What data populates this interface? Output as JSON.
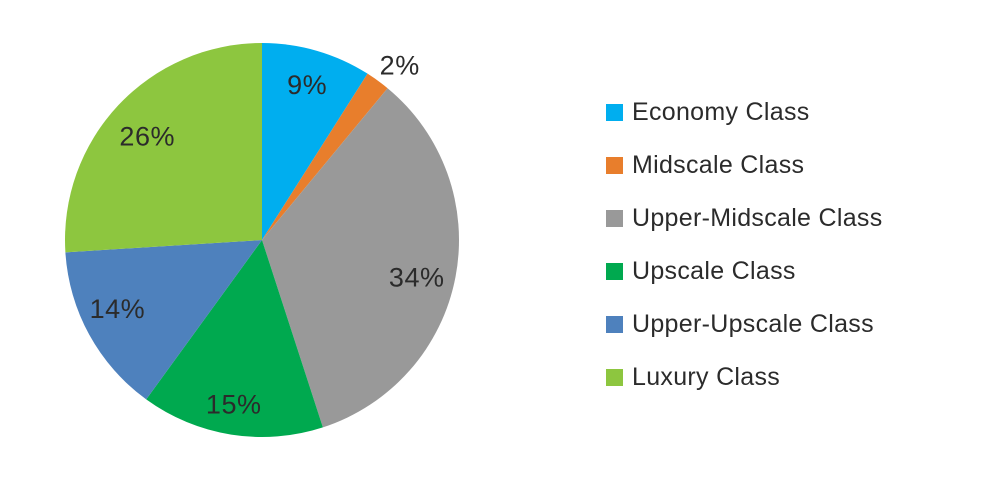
{
  "chart_data": {
    "type": "pie",
    "title": "",
    "categories": [
      "Economy Class",
      "Midscale Class",
      "Upper-Midscale Class",
      "Upscale Class",
      "Upper-Upscale Class",
      "Luxury Class"
    ],
    "values": [
      9,
      2,
      34,
      15,
      14,
      26
    ],
    "labels": [
      "9%",
      "2%",
      "34%",
      "15%",
      "14%",
      "26%"
    ],
    "colors": [
      "#00aeef",
      "#e87e2c",
      "#999999",
      "#00a94f",
      "#4e81bd",
      "#8dc63f"
    ],
    "start_angle_deg": 0,
    "direction": "clockwise",
    "legend_position": "right",
    "background_color": "#ffffff",
    "label_color": "#2b2b2b"
  }
}
